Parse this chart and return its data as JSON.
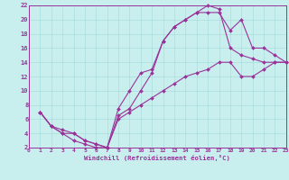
{
  "bg_color": "#c8eeee",
  "grid_color": "#aadddd",
  "line_color": "#993399",
  "xlim": [
    0,
    23
  ],
  "ylim": [
    2,
    22
  ],
  "xticks": [
    0,
    1,
    2,
    3,
    4,
    5,
    6,
    7,
    8,
    9,
    10,
    11,
    12,
    13,
    14,
    15,
    16,
    17,
    18,
    19,
    20,
    21,
    22,
    23
  ],
  "yticks": [
    2,
    4,
    6,
    8,
    10,
    12,
    14,
    16,
    18,
    20,
    22
  ],
  "xlabel": "Windchill (Refroidissement éolien,°C)",
  "line1_x": [
    1,
    2,
    3,
    4,
    5,
    6,
    7,
    8,
    9,
    10,
    11,
    12,
    13,
    14,
    15,
    16,
    17,
    18,
    19,
    20,
    21,
    22,
    23
  ],
  "line1_y": [
    7,
    5,
    4,
    3,
    2.5,
    2,
    2,
    7.5,
    10,
    12.5,
    13,
    17,
    19,
    20,
    21,
    22,
    21.5,
    16,
    15,
    14.5,
    14,
    14,
    14
  ],
  "line2_x": [
    1,
    2,
    3,
    4,
    5,
    6,
    7,
    8,
    9,
    10,
    11,
    12,
    13,
    14,
    15,
    16,
    17,
    18,
    19,
    20,
    21,
    22,
    23
  ],
  "line2_y": [
    7,
    5,
    4,
    4,
    3,
    2.5,
    2,
    6.5,
    7.5,
    10,
    12.5,
    17,
    19,
    20,
    21,
    21,
    21,
    18.5,
    20,
    16,
    16,
    15,
    14
  ],
  "line3_x": [
    1,
    2,
    3,
    4,
    5,
    6,
    7,
    8,
    9,
    10,
    11,
    12,
    13,
    14,
    15,
    16,
    17,
    18,
    19,
    20,
    21,
    22,
    23
  ],
  "line3_y": [
    7,
    5,
    4.5,
    4,
    3,
    2.5,
    2,
    6,
    7,
    8,
    9,
    10,
    11,
    12,
    12.5,
    13,
    14,
    14,
    12,
    12,
    13,
    14,
    14
  ]
}
